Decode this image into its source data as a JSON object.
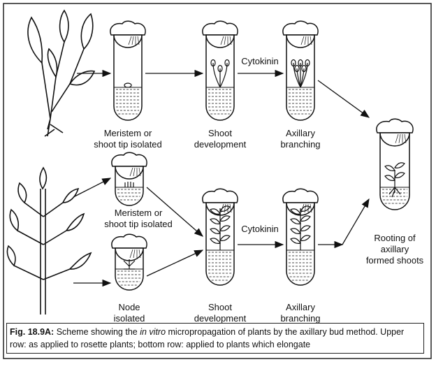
{
  "labels": [
    {
      "lines": [
        "Meristem or",
        "shoot tip isolated"
      ]
    },
    {
      "lines": [
        "Shoot",
        "development"
      ]
    },
    {
      "lines": [
        "Cytokinin"
      ]
    },
    {
      "lines": [
        "Axillary",
        "branching"
      ]
    },
    {
      "lines": [
        "Meristem or",
        "shoot tip isolated"
      ]
    },
    {
      "lines": [
        "Node",
        "isolated"
      ]
    },
    {
      "lines": [
        "Shoot",
        "development"
      ]
    },
    {
      "lines": [
        "Cytokinin"
      ]
    },
    {
      "lines": [
        "Axillary",
        "branching"
      ]
    },
    {
      "lines": [
        "Rooting of",
        "axillary",
        "formed shoots"
      ]
    }
  ],
  "caption": {
    "label": "Fig. 18.9A:",
    "text_1": " Scheme showing the ",
    "italic": "in vitro",
    "text_2": " micropropagation of plants by the axillary bud method. Upper",
    "line_2": "row: as applied to rosette plants; bottom row: applied to plants which elongate"
  }
}
